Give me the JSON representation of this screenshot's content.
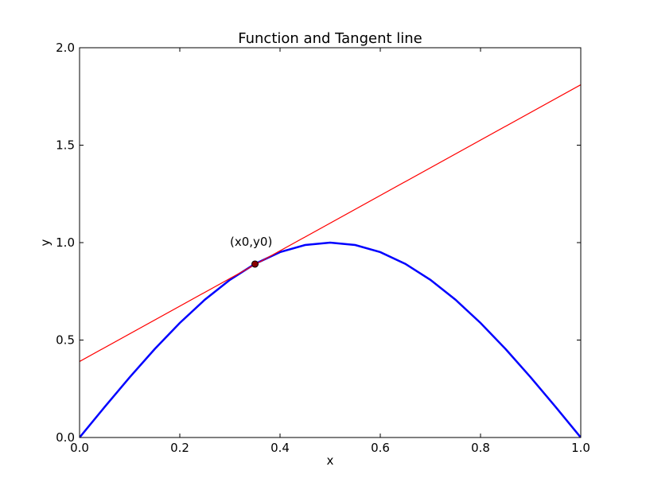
{
  "chart_data": {
    "type": "line",
    "title": "Function and Tangent line",
    "xlabel": "x",
    "ylabel": "y",
    "xlim": [
      0,
      1
    ],
    "ylim": [
      0,
      2
    ],
    "xticks": [
      {
        "value": 0,
        "label": "0.0"
      },
      {
        "value": 0.2,
        "label": "0.2"
      },
      {
        "value": 0.4,
        "label": "0.4"
      },
      {
        "value": 0.6,
        "label": "0.6"
      },
      {
        "value": 0.8,
        "label": "0.8"
      },
      {
        "value": 1,
        "label": "1.0"
      }
    ],
    "yticks": [
      {
        "value": 0,
        "label": "0.0"
      },
      {
        "value": 0.5,
        "label": "0.5"
      },
      {
        "value": 1,
        "label": "1.0"
      },
      {
        "value": 1.5,
        "label": "1.5"
      },
      {
        "value": 2,
        "label": "2.0"
      }
    ],
    "series": [
      {
        "type": "line",
        "color": "#0000ff",
        "width": 2.5,
        "x": [
          0,
          0.05,
          0.1,
          0.15,
          0.2,
          0.25,
          0.3,
          0.35,
          0.4,
          0.45,
          0.5,
          0.55,
          0.6,
          0.65,
          0.7,
          0.75,
          0.8,
          0.85,
          0.9,
          0.95,
          1
        ],
        "values": [
          0,
          0.1564,
          0.309,
          0.454,
          0.5878,
          0.7071,
          0.809,
          0.891,
          0.9511,
          0.9877,
          1,
          0.9877,
          0.9511,
          0.891,
          0.809,
          0.7071,
          0.5878,
          0.454,
          0.309,
          0.1564,
          0
        ]
      },
      {
        "type": "line",
        "color": "#ff0000",
        "width": 1.2,
        "x": [
          0,
          1
        ],
        "values": [
          0.39,
          1.81
        ]
      },
      {
        "type": "scatter",
        "color": "#8b0000",
        "x": [
          0.35
        ],
        "values": [
          0.89
        ]
      }
    ],
    "annotations": [
      {
        "text": "(x0,y0)",
        "x": 0.3,
        "y": 1.0
      }
    ]
  }
}
